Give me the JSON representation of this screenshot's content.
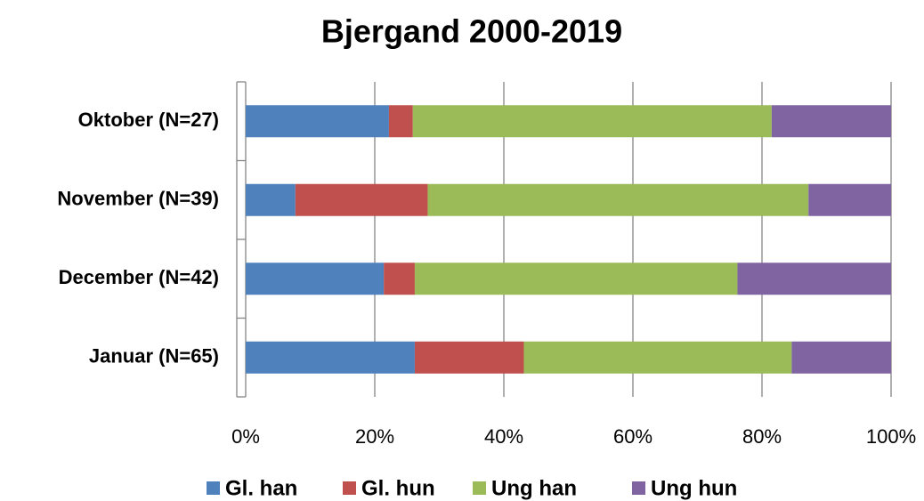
{
  "chart_data": {
    "type": "stacked-barh",
    "title": "Bjergand 2000-2019",
    "categories": [
      "Oktober (N=27)",
      "November (N=39)",
      "December (N=42)",
      "Januar (N=65)"
    ],
    "series": [
      {
        "name": "Gl. han",
        "color": "#4f81bd",
        "values": [
          22.2,
          7.7,
          21.4,
          26.2
        ]
      },
      {
        "name": "Gl. hun",
        "color": "#c0504d",
        "values": [
          3.7,
          20.5,
          4.8,
          16.9
        ]
      },
      {
        "name": "Ung han",
        "color": "#9bbb59",
        "values": [
          55.6,
          59.0,
          50.0,
          41.5
        ]
      },
      {
        "name": "Ung hun",
        "color": "#8064a2",
        "values": [
          18.5,
          12.8,
          23.8,
          15.4
        ]
      }
    ],
    "xlim": [
      0,
      100
    ],
    "xticks": [
      {
        "value": 0,
        "label": "0%"
      },
      {
        "value": 20,
        "label": "20%"
      },
      {
        "value": 40,
        "label": "40%"
      },
      {
        "value": 60,
        "label": "60%"
      },
      {
        "value": 80,
        "label": "80%"
      },
      {
        "value": 100,
        "label": "100%"
      }
    ],
    "grid": true,
    "legend": "bottom"
  }
}
